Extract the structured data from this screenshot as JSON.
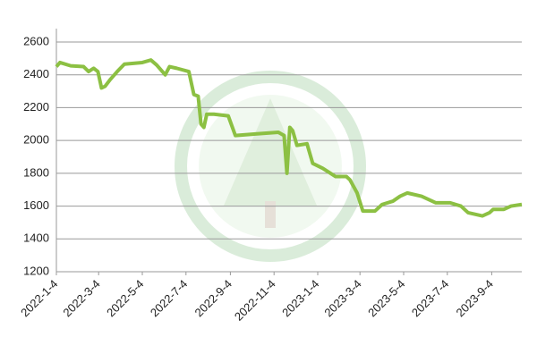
{
  "chart_data": {
    "type": "line",
    "series": [
      {
        "color": "#8cc043",
        "x": [
          0,
          5,
          20,
          38,
          45,
          52,
          58,
          63,
          68,
          75,
          85,
          95,
          120,
          132,
          140,
          152,
          158,
          168,
          185,
          192,
          198,
          202,
          206,
          210,
          220,
          240,
          250,
          280,
          310,
          318,
          322,
          326,
          330,
          336,
          350,
          358,
          372,
          390,
          405,
          410,
          420,
          428,
          445,
          455,
          470,
          480,
          490,
          510,
          530,
          550,
          565,
          575,
          595,
          605,
          610,
          625,
          635,
          650
        ],
        "values": [
          2450,
          2475,
          2455,
          2450,
          2420,
          2440,
          2420,
          2320,
          2330,
          2370,
          2420,
          2465,
          2475,
          2490,
          2460,
          2400,
          2450,
          2440,
          2420,
          2280,
          2270,
          2100,
          2080,
          2160,
          2160,
          2150,
          2030,
          2040,
          2050,
          2030,
          1800,
          2080,
          2060,
          1970,
          1980,
          1860,
          1830,
          1780,
          1780,
          1760,
          1680,
          1570,
          1570,
          1610,
          1630,
          1660,
          1680,
          1660,
          1620,
          1620,
          1600,
          1560,
          1540,
          1560,
          1580,
          1580,
          1600,
          1610
        ]
      }
    ],
    "xlim": [
      0,
      650
    ],
    "xticks": [
      {
        "value": 0,
        "label": "2022-1-4"
      },
      {
        "value": 59,
        "label": "2022-3-4"
      },
      {
        "value": 120,
        "label": "2022-5-4"
      },
      {
        "value": 181,
        "label": "2022-7-4"
      },
      {
        "value": 243,
        "label": "2022-9-4"
      },
      {
        "value": 304,
        "label": "2022-11-4"
      },
      {
        "value": 365,
        "label": "2023-1-4"
      },
      {
        "value": 424,
        "label": "2023-3-4"
      },
      {
        "value": 485,
        "label": "2023-5-4"
      },
      {
        "value": 546,
        "label": "2023-7-4"
      },
      {
        "value": 608,
        "label": "2023-9-4"
      }
    ],
    "ylim": [
      1200,
      2600
    ],
    "yticks": [
      1200,
      1400,
      1600,
      1800,
      2000,
      2200,
      2400,
      2600
    ],
    "grid": true
  }
}
